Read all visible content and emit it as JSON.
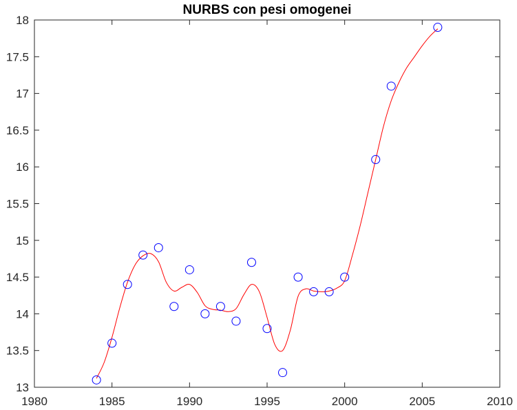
{
  "chart_data": {
    "type": "scatter",
    "title": "NURBS con pesi omogenei",
    "xlabel": "",
    "ylabel": "",
    "xlim": [
      1980,
      2010
    ],
    "ylim": [
      13,
      18
    ],
    "xticks": [
      1980,
      1985,
      1990,
      1995,
      2000,
      2005,
      2010
    ],
    "yticks": [
      13,
      13.5,
      14,
      14.5,
      15,
      15.5,
      16,
      16.5,
      17,
      17.5,
      18
    ],
    "grid": false,
    "legend": "none",
    "series": [
      {
        "kind": "scatter",
        "marker": "circle-open",
        "color": "#0000ff",
        "x": [
          1984,
          1985,
          1986,
          1987,
          1988,
          1989,
          1990,
          1991,
          1992,
          1993,
          1994,
          1995,
          1996,
          1997,
          1998,
          1999,
          2000,
          2002,
          2003,
          2006
        ],
        "y": [
          13.1,
          13.6,
          14.4,
          14.8,
          14.9,
          14.1,
          14.6,
          14.0,
          14.1,
          13.9,
          14.7,
          13.8,
          13.2,
          14.5,
          14.3,
          14.3,
          14.5,
          16.1,
          17.1,
          17.9
        ]
      },
      {
        "kind": "line",
        "color": "#ff0000",
        "x": [
          1984.0,
          1984.5,
          1985.0,
          1985.5,
          1986.0,
          1986.5,
          1987.0,
          1987.5,
          1988.0,
          1988.5,
          1989.0,
          1989.5,
          1990.0,
          1990.5,
          1991.0,
          1991.5,
          1992.0,
          1992.5,
          1993.0,
          1993.5,
          1994.0,
          1994.5,
          1995.0,
          1995.5,
          1996.0,
          1996.5,
          1997.0,
          1997.5,
          1998.0,
          1998.5,
          1999.0,
          1999.5,
          2000.0,
          2000.5,
          2001.0,
          2001.5,
          2002.0,
          2002.5,
          2003.0,
          2003.5,
          2004.0,
          2004.5,
          2005.0,
          2005.5,
          2006.0
        ],
        "y": [
          13.12,
          13.34,
          13.68,
          14.08,
          14.43,
          14.67,
          14.79,
          14.82,
          14.71,
          14.43,
          14.31,
          14.36,
          14.4,
          14.29,
          14.11,
          14.06,
          14.05,
          14.03,
          14.07,
          14.26,
          14.4,
          14.3,
          13.95,
          13.58,
          13.5,
          13.78,
          14.24,
          14.34,
          14.31,
          14.3,
          14.31,
          14.35,
          14.45,
          14.8,
          15.2,
          15.65,
          16.1,
          16.55,
          16.9,
          17.15,
          17.35,
          17.5,
          17.65,
          17.78,
          17.88
        ]
      }
    ]
  }
}
